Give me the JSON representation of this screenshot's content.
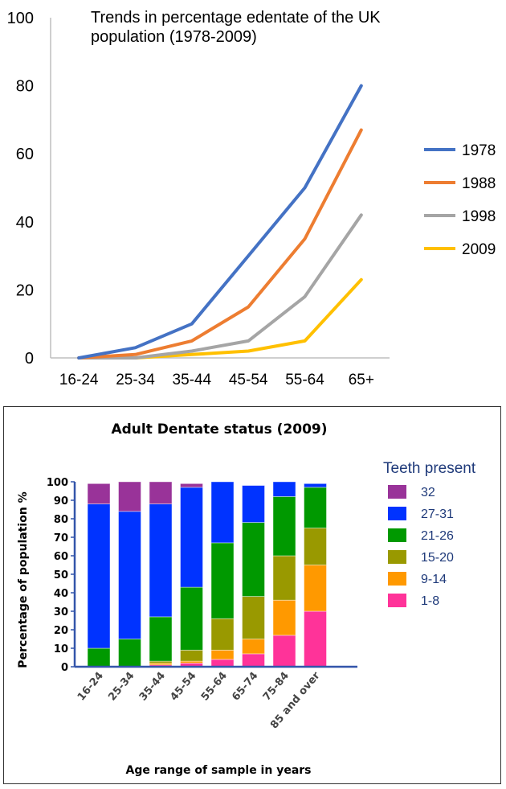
{
  "chart_data": [
    {
      "type": "line",
      "title": "Trends in percentage edentate of the UK population (1978-2009)",
      "title_lines": [
        "Trends in percentage edentate of the UK",
        "population (1978-2009)"
      ],
      "categories": [
        "16-24",
        "25-34",
        "35-44",
        "45-54",
        "55-64",
        "65+"
      ],
      "ylim": [
        0,
        100
      ],
      "yticks": [
        0,
        20,
        40,
        60,
        80,
        100
      ],
      "grid": false,
      "legend_position": "right",
      "series": [
        {
          "name": "1978",
          "color": "#4472C4",
          "values": [
            0,
            3,
            10,
            30,
            50,
            80
          ]
        },
        {
          "name": "1988",
          "color": "#ED7D31",
          "values": [
            0,
            1,
            5,
            15,
            35,
            67
          ]
        },
        {
          "name": "1998",
          "color": "#A5A5A5",
          "values": [
            0,
            0,
            2,
            5,
            18,
            42
          ]
        },
        {
          "name": "2009",
          "color": "#FFC000",
          "values": [
            0,
            0,
            1,
            2,
            5,
            23
          ]
        }
      ]
    },
    {
      "type": "bar",
      "stacked": true,
      "title": "Adult Dentate status (2009)",
      "xlabel": "Age range of sample in years",
      "ylabel": "Percentage of population %",
      "categories": [
        "16-24",
        "25-34",
        "35-44",
        "45-54",
        "55-64",
        "65-74",
        "75-84",
        "85 and over"
      ],
      "ylim": [
        0,
        100
      ],
      "yticks": [
        0,
        10,
        20,
        30,
        40,
        50,
        60,
        70,
        80,
        90,
        100
      ],
      "legend_title": "Teeth present",
      "legend_position": "right",
      "series": [
        {
          "name": "1-8",
          "color": "#FF3399",
          "values": [
            0,
            0,
            1,
            2,
            4,
            7,
            17,
            30
          ]
        },
        {
          "name": "9-14",
          "color": "#FF9900",
          "values": [
            0,
            0,
            1,
            1,
            5,
            8,
            19,
            25
          ]
        },
        {
          "name": "15-20",
          "color": "#999900",
          "values": [
            0,
            0,
            1,
            6,
            17,
            23,
            24,
            20
          ]
        },
        {
          "name": "21-26",
          "color": "#009900",
          "values": [
            10,
            15,
            24,
            34,
            41,
            40,
            32,
            22
          ]
        },
        {
          "name": "27-31",
          "color": "#0033FF",
          "values": [
            78,
            69,
            61,
            54,
            33,
            20,
            8,
            2
          ]
        },
        {
          "name": "32",
          "color": "#993399",
          "values": [
            11,
            16,
            12,
            2,
            0,
            0,
            0,
            0
          ]
        }
      ]
    }
  ]
}
